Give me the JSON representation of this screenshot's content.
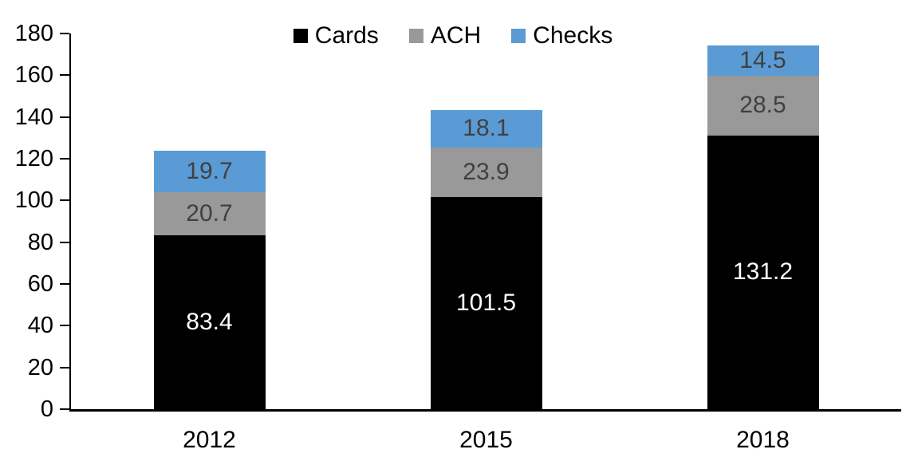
{
  "chart_data": {
    "type": "bar",
    "stacked": true,
    "title": "",
    "xlabel": "",
    "ylabel": "",
    "categories": [
      "2012",
      "2015",
      "2018"
    ],
    "series": [
      {
        "name": "Cards",
        "color": "#000000",
        "label_color": "#ffffff",
        "values": [
          83.4,
          101.5,
          131.2
        ]
      },
      {
        "name": "ACH",
        "color": "#999999",
        "label_color": "#404040",
        "values": [
          20.7,
          23.9,
          28.5
        ]
      },
      {
        "name": "Checks",
        "color": "#5B9BD5",
        "label_color": "#404040",
        "values": [
          19.7,
          18.1,
          14.5
        ]
      }
    ],
    "ylim": [
      0,
      180
    ],
    "yticks": [
      0,
      20,
      40,
      60,
      80,
      100,
      120,
      140,
      160,
      180
    ],
    "grid": false,
    "legend_position": "top",
    "axis_color": "#000000",
    "background_color": "#ffffff"
  }
}
